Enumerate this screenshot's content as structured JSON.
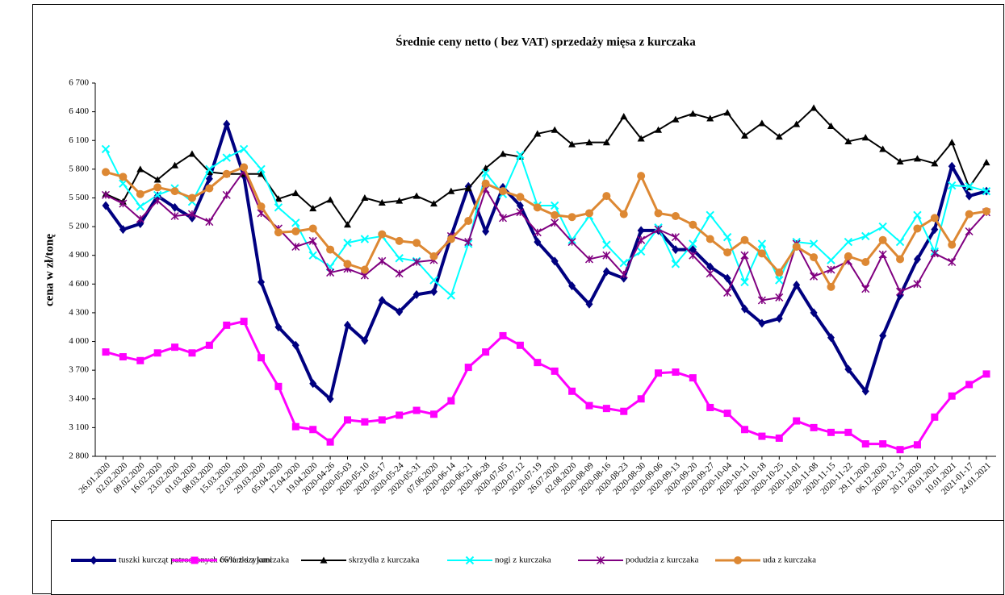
{
  "chart_data": {
    "type": "line",
    "title": "Średnie ceny netto ( bez VAT) sprzedaży mięsa z kurczaka",
    "y_label": "cena w zł/tonę",
    "categories": [
      "26.01.2020",
      "02.02.2020",
      "09.02.2020",
      "16.02.2020",
      "23.02.2020",
      "01.03.2020",
      "08.03.2020",
      "15.03.2020",
      "22.03.2020",
      "29.03.2020",
      "05.04.2020",
      "12.04.2020",
      "19.04.2020",
      "2020-04-26",
      "2020-05-03",
      "2020-05-10",
      "2020-05-17",
      "2020-05-24",
      "2020-05-31",
      "07.06.2020",
      "2020-06-14",
      "2020-06-21",
      "2020-06-28",
      "2020-07-05",
      "2020-07-12",
      "2020-07-19",
      "26.07.2020",
      "02.08.2020",
      "2020-08-09",
      "2020-08-16",
      "2020-08-23",
      "2020-08-30",
      "2020-09-06",
      "2020-09-13",
      "2020-09-20",
      "2020-09-27",
      "2020-10-04",
      "2020-10-11",
      "2020-10-18",
      "2020-10-25",
      "2020-11-01",
      "2020-11-08",
      "2020-11-15",
      "2020-11-22",
      "29.11.2020",
      "06.12.2020",
      "2020-12-13",
      "20.12.2020",
      "03.01.2021",
      "10.01.2021",
      "2021-01-17",
      "24.01.2021"
    ],
    "series": [
      {
        "name": "tuszki kurcząt patroszonych 65% z szyjami",
        "color": "#000080",
        "marker": "diamond",
        "values": [
          5420,
          5170,
          5230,
          5520,
          5400,
          5290,
          5700,
          6270,
          5730,
          4620,
          4150,
          3960,
          3560,
          3400,
          4170,
          4010,
          4430,
          4310,
          4490,
          4520,
          5100,
          5620,
          5150,
          5610,
          5420,
          5040,
          4840,
          4580,
          4390,
          4730,
          4660,
          5160,
          5160,
          4960,
          4960,
          4780,
          4660,
          4340,
          4190,
          4240,
          4590,
          4300,
          4040,
          3710,
          3480,
          4060,
          4480,
          4860,
          5170,
          5830,
          5520,
          5570
        ]
      },
      {
        "name": "ćwiartki z kurczaka",
        "color": "#ff00ff",
        "marker": "square",
        "values": [
          3890,
          3840,
          3800,
          3880,
          3940,
          3880,
          3960,
          4170,
          4210,
          3830,
          3530,
          3110,
          3080,
          2950,
          3180,
          3160,
          3180,
          3230,
          3280,
          3240,
          3380,
          3730,
          3890,
          4060,
          3960,
          3780,
          3690,
          3480,
          3330,
          3300,
          3270,
          3400,
          3670,
          3680,
          3620,
          3310,
          3250,
          3080,
          3010,
          2990,
          3170,
          3100,
          3050,
          3050,
          2930,
          2930,
          2870,
          2920,
          3210,
          3430,
          3550,
          3660
        ]
      },
      {
        "name": "skrzydła z kurczaka",
        "color": "#000000",
        "marker": "triangle",
        "values": [
          5540,
          5460,
          5800,
          5690,
          5840,
          5960,
          5770,
          5750,
          5750,
          5750,
          5490,
          5550,
          5390,
          5480,
          5220,
          5500,
          5450,
          5470,
          5520,
          5440,
          5570,
          5600,
          5810,
          5960,
          5930,
          6170,
          6210,
          6060,
          6080,
          6080,
          6350,
          6120,
          6210,
          6320,
          6380,
          6330,
          6390,
          6150,
          6280,
          6140,
          6270,
          6440,
          6250,
          6090,
          6130,
          6010,
          5880,
          5910,
          5860,
          6080,
          5610,
          5870
        ]
      },
      {
        "name": "nogi z kurczaka",
        "color": "#00ffff",
        "marker": "cross",
        "values": [
          6010,
          5650,
          5410,
          5530,
          5600,
          5460,
          5800,
          5920,
          6010,
          5800,
          5400,
          5240,
          4900,
          4780,
          5030,
          5070,
          5100,
          4870,
          4840,
          4640,
          4480,
          5020,
          5760,
          5540,
          5950,
          5420,
          5420,
          5060,
          5310,
          5010,
          4820,
          4940,
          5190,
          4810,
          5020,
          5320,
          5090,
          4620,
          5020,
          4640,
          5040,
          5020,
          4850,
          5040,
          5100,
          5200,
          5040,
          5320,
          4940,
          5630,
          5620,
          5570
        ]
      },
      {
        "name": "podudzia z kurczaka",
        "color": "#800080",
        "marker": "star",
        "values": [
          5530,
          5440,
          5280,
          5470,
          5310,
          5330,
          5250,
          5530,
          5780,
          5340,
          5180,
          4990,
          5050,
          4720,
          4760,
          4690,
          4840,
          4710,
          4830,
          4850,
          5100,
          5040,
          5590,
          5290,
          5350,
          5140,
          5240,
          5040,
          4860,
          4900,
          4700,
          5060,
          5170,
          5090,
          4900,
          4710,
          4510,
          4900,
          4430,
          4460,
          5020,
          4680,
          4750,
          4840,
          4550,
          4910,
          4520,
          4600,
          4920,
          4830,
          5150,
          5350
        ]
      },
      {
        "name": "uda z kurczaka",
        "color": "#dd8833",
        "marker": "circle",
        "values": [
          5770,
          5720,
          5540,
          5610,
          5570,
          5500,
          5600,
          5750,
          5820,
          5410,
          5140,
          5150,
          5180,
          4960,
          4810,
          4750,
          5120,
          5050,
          5030,
          4890,
          5070,
          5260,
          5650,
          5570,
          5510,
          5400,
          5320,
          5300,
          5340,
          5520,
          5330,
          5730,
          5340,
          5310,
          5220,
          5070,
          4930,
          5060,
          4920,
          4720,
          4990,
          4880,
          4570,
          4890,
          4830,
          5060,
          4860,
          5180,
          5290,
          5010,
          5330,
          5360
        ]
      }
    ],
    "ylim": [
      2800,
      6700
    ],
    "yticks": [
      {
        "value": 2800,
        "label": "2 800"
      },
      {
        "value": 3100,
        "label": "3 100"
      },
      {
        "value": 3400,
        "label": "3 400"
      },
      {
        "value": 3700,
        "label": "3 700"
      },
      {
        "value": 4000,
        "label": "4 000"
      },
      {
        "value": 4300,
        "label": "4 300"
      },
      {
        "value": 4600,
        "label": "4 600"
      },
      {
        "value": 4900,
        "label": "4 900"
      },
      {
        "value": 5200,
        "label": "5 200"
      },
      {
        "value": 5500,
        "label": "5 500"
      },
      {
        "value": 5800,
        "label": "5 800"
      },
      {
        "value": 6100,
        "label": "6 100"
      },
      {
        "value": 6400,
        "label": "6 400"
      },
      {
        "value": 6700,
        "label": "6 700"
      }
    ],
    "grid": false,
    "legend": "bottom"
  }
}
